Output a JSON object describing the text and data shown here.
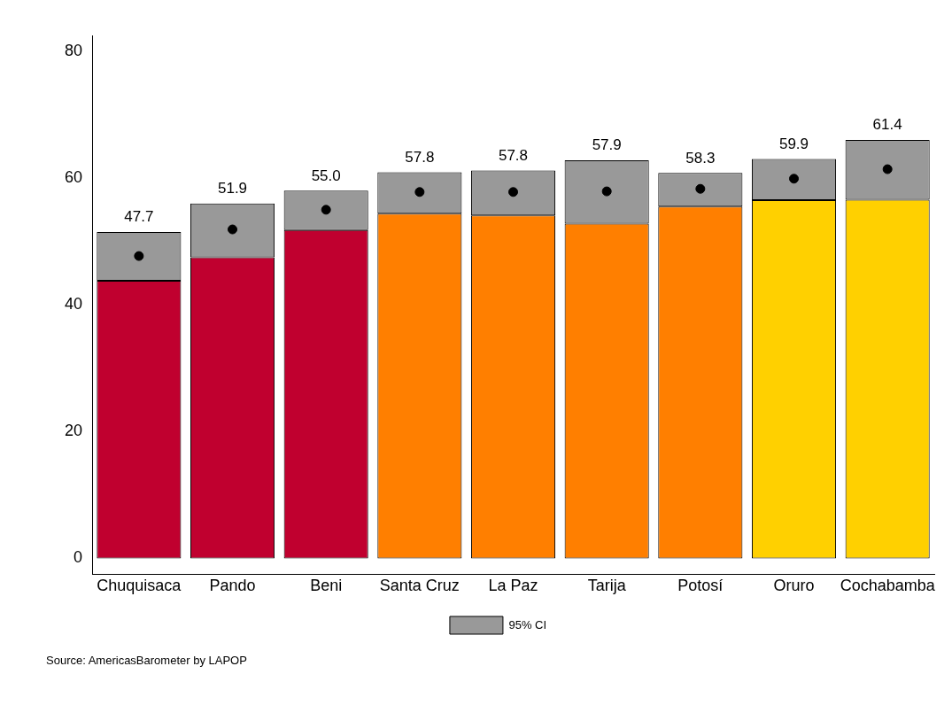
{
  "chart_data": {
    "type": "bar",
    "stacked": true,
    "categories": [
      "Chuquisaca",
      "Pando",
      "Beni",
      "Santa Cruz",
      "La Paz",
      "Tarija",
      "Potosí",
      "Oruro",
      "Cochabamba"
    ],
    "series": [
      {
        "colors": [
          "#c0002f",
          "#c0002f",
          "#c0002f",
          "#ff7f00",
          "#ff7f00",
          "#ff7f00",
          "#ff7f00",
          "#ffd000",
          "#ffd000"
        ],
        "values": [
          43.8,
          47.5,
          51.8,
          54.4,
          54.1,
          52.8,
          55.5,
          56.5,
          56.6
        ]
      },
      {
        "name": "95% CI",
        "color": "#999999",
        "values": [
          7.7,
          8.5,
          6.2,
          6.5,
          7.1,
          10.0,
          5.3,
          6.5,
          9.4
        ]
      },
      {
        "type": "scatter",
        "color": "#000000",
        "marker": "circle",
        "x": [
          "Chuquisaca",
          "Pando",
          "Beni",
          "Santa Cruz",
          "La Paz",
          "Tarija",
          "Potosí",
          "Oruro",
          "Cochabamba"
        ],
        "values": [
          47.7,
          51.9,
          55.0,
          57.8,
          57.8,
          57.9,
          58.3,
          59.9,
          61.4
        ],
        "value_labels": [
          "47.7",
          "51.9",
          "55.0",
          "57.8",
          "57.8",
          "57.9",
          "58.3",
          "59.9",
          "61.4"
        ]
      }
    ],
    "ylim": [
      -2.5,
      82.5
    ],
    "yticks": [
      0,
      20,
      40,
      60,
      80
    ],
    "grid": false,
    "legend": "bottom",
    "annotations": [
      "Source: AmericasBarometer by LAPOP"
    ]
  }
}
